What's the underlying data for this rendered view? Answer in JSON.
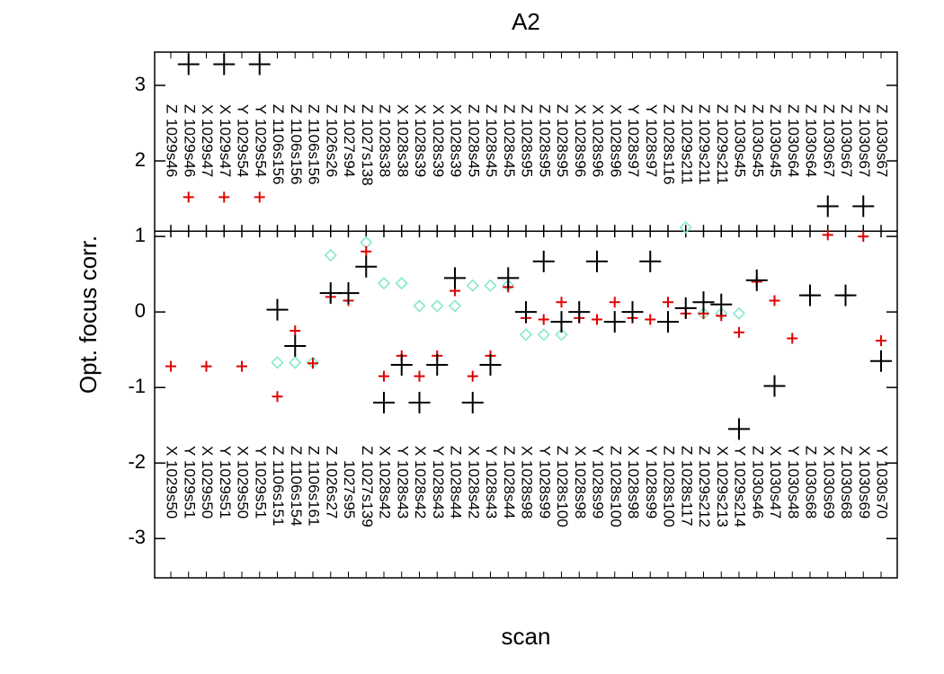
{
  "chart_data": {
    "type": "scatter",
    "title": "A2",
    "x_label": "scan",
    "y_label": "Opt. focus corr.",
    "ylim": [
      -3.52,
      3.44
    ],
    "yticks": [
      -3,
      -2,
      -1,
      0,
      1,
      2,
      3
    ],
    "hline": 1.07,
    "top_letters": [
      "Z",
      "Z",
      "X",
      "X",
      "Y",
      "Y",
      "Z",
      "Z",
      "Z",
      "Z",
      "Z",
      "Z",
      "Z",
      "X",
      "X",
      "X",
      "X",
      "Z",
      "Z",
      "Z",
      "Z",
      "Z",
      "Z",
      "X",
      "X",
      "X",
      "Y",
      "Y",
      "Z",
      "Z",
      "Z",
      "Z",
      "Z",
      "Z",
      "Z",
      "Z",
      "Z",
      "Z",
      "Z",
      "Z",
      "Z"
    ],
    "top_categories": [
      "1029s46",
      "1029s46",
      "1029s47",
      "1029s47",
      "1029s54",
      "1029s54",
      "1106s156",
      "1106s156",
      "1106s156",
      "1026s26",
      "1027s94",
      "1027s138",
      "1028s38",
      "1028s38",
      "1028s39",
      "1028s39",
      "1028s39",
      "1028s45",
      "1028s45",
      "1028s45",
      "1028s95",
      "1028s95",
      "1028s95",
      "1028s96",
      "1028s96",
      "1028s96",
      "1028s97",
      "1028s97",
      "1028s116",
      "1029s211",
      "1029s211",
      "1029s211",
      "1030s45",
      "1030s45",
      "1030s45",
      "1030s64",
      "1030s64",
      "1030s67",
      "1030s67",
      "1030s67",
      "1030s67"
    ],
    "bottom_letters": [
      "X",
      "Y",
      "X",
      "Y",
      "X",
      "Y",
      "Z",
      "Z",
      "Z",
      "Z",
      null,
      "Z",
      "X",
      "Y",
      "X",
      "Y",
      "Z",
      "X",
      "Y",
      "Z",
      "X",
      "Y",
      "Z",
      "X",
      "Y",
      "Z",
      "X",
      "Y",
      "Z",
      "Z",
      "Z",
      "X",
      "Y",
      "Z",
      "X",
      "Y",
      "Z",
      "X",
      "Z",
      "X",
      "Y"
    ],
    "categories": [
      "1029s50",
      "1029s51",
      "1029s50",
      "1029s51",
      "1029s50",
      "1029s51",
      "1106s151",
      "1106s154",
      "1106s161",
      "1026s27",
      "1027s95",
      "1027s139",
      "1028s42",
      "1028s43",
      "1028s42",
      "1028s43",
      "1028s44",
      "1028s42",
      "1028s43",
      "1028s44",
      "1028s98",
      "1028s99",
      "1028s100",
      "1028s98",
      "1028s99",
      "1028s100",
      "1028s98",
      "1028s99",
      "1028s100",
      "1028s117",
      "1029s212",
      "1029s213",
      "1029s214",
      "1030s46",
      "1030s47",
      "1030s48",
      "1030s68",
      "1030s69",
      "1030s68",
      "1030s69",
      "1030s70"
    ],
    "series": [
      {
        "color": "#7fe8cc",
        "marker": "diamond",
        "values": [
          null,
          null,
          null,
          null,
          null,
          null,
          -0.67,
          -0.67,
          -0.67,
          0.75,
          null,
          0.92,
          0.38,
          0.38,
          0.08,
          0.08,
          0.08,
          0.35,
          0.35,
          0.35,
          -0.3,
          -0.3,
          -0.3,
          null,
          null,
          null,
          null,
          null,
          null,
          1.12,
          -0.02,
          -0.02,
          -0.02,
          null,
          null,
          null,
          null,
          null,
          null,
          null,
          null
        ]
      },
      {
        "color": "#e00000",
        "marker": "small-plus",
        "values": [
          -0.72,
          1.52,
          -0.72,
          1.52,
          -0.72,
          1.52,
          -1.12,
          -0.25,
          -0.68,
          0.2,
          0.15,
          0.8,
          -0.85,
          -0.58,
          -0.85,
          -0.58,
          0.28,
          -0.85,
          -0.58,
          0.33,
          -0.08,
          -0.1,
          0.13,
          -0.08,
          -0.1,
          0.13,
          -0.08,
          -0.1,
          0.13,
          -0.02,
          -0.02,
          -0.05,
          -0.27,
          0.4,
          0.15,
          -0.35,
          0.22,
          1.02,
          0.22,
          1.0,
          -0.38
        ]
      },
      {
        "color": "#000000",
        "marker": "plus",
        "values": [
          null,
          3.28,
          null,
          3.28,
          null,
          3.28,
          0.03,
          -0.45,
          null,
          0.25,
          0.25,
          0.6,
          -1.2,
          -0.7,
          -1.2,
          -0.7,
          0.45,
          -1.2,
          -0.7,
          0.45,
          0,
          0.67,
          -0.13,
          0,
          0.67,
          -0.13,
          0,
          0.67,
          -0.13,
          0.05,
          0.13,
          0.1,
          -1.55,
          0.42,
          -0.98,
          null,
          0.22,
          1.4,
          0.22,
          1.4,
          -0.65
        ]
      }
    ]
  }
}
